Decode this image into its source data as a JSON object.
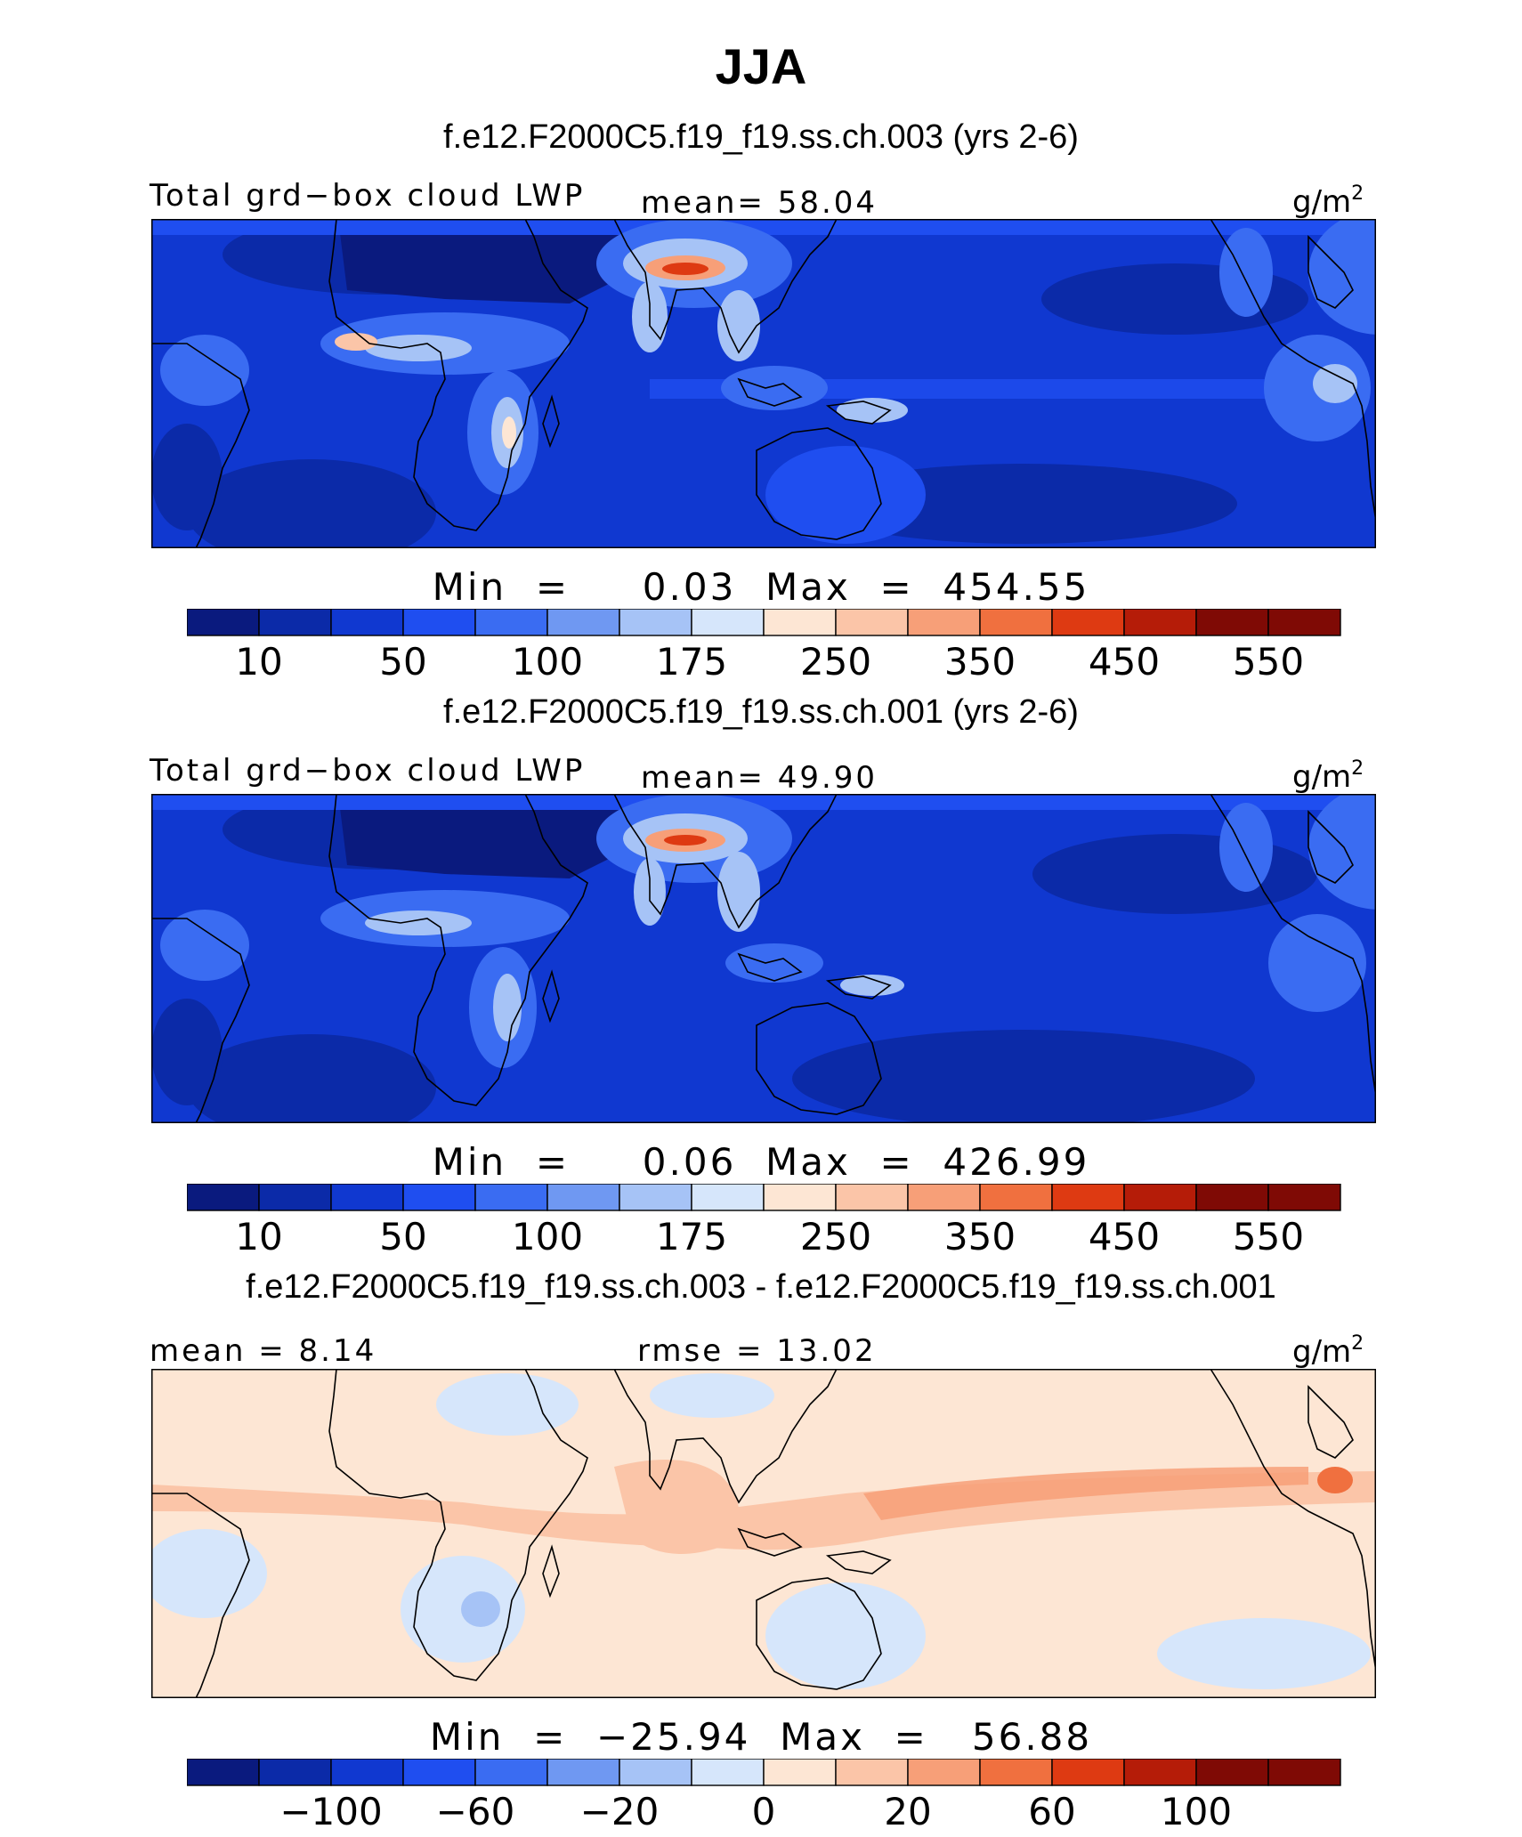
{
  "figure": {
    "title": "JJA",
    "units_base": "g/m",
    "units_exp": "2"
  },
  "palette": {
    "levels14": [
      "#0a1a7e",
      "#0b2aa8",
      "#1038d0",
      "#1f4ef0",
      "#3a6cf2",
      "#6f98f2",
      "#a6c3f6",
      "#d6e6fb",
      "#fde6d4",
      "#fbc5a8",
      "#f79f78",
      "#f0703f",
      "#de3a12",
      "#b51c08",
      "#7f0a05"
    ],
    "ocean_blue": "#1038d0",
    "coast": "#000000"
  },
  "panels": [
    {
      "title": "f.e12.F2000C5.f19_f19.ss.ch.003 (yrs 2-6)",
      "field_label": "Total grd−box cloud LWP",
      "stat_label": "mean=  58.04",
      "minmax": "Min  =     0.03  Max  =  454.55",
      "colorbar_ticks": [
        "10",
        "50",
        "100",
        "175",
        "250",
        "350",
        "450",
        "550"
      ]
    },
    {
      "title": "f.e12.F2000C5.f19_f19.ss.ch.001 (yrs 2-6)",
      "field_label": "Total grd−box cloud LWP",
      "stat_label": "mean=  49.90",
      "minmax": "Min  =     0.06  Max  =  426.99",
      "colorbar_ticks": [
        "10",
        "50",
        "100",
        "175",
        "250",
        "350",
        "450",
        "550"
      ]
    },
    {
      "title": "f.e12.F2000C5.f19_f19.ss.ch.003 - f.e12.F2000C5.f19_f19.ss.ch.001",
      "field_label": "mean =   8.14",
      "stat_label": "rmse  =  13.02",
      "minmax": "Min  =  −25.94  Max  =   56.88",
      "colorbar_ticks": [
        "−100",
        "−60",
        "−20",
        "0",
        "20",
        "60",
        "100"
      ]
    }
  ],
  "chart_data": [
    {
      "type": "heatmap",
      "title": "f.e12.F2000C5.f19_f19.ss.ch.003 (yrs 2-6)",
      "variable": "Total grd-box cloud LWP",
      "units": "g/m2",
      "season": "JJA",
      "mean": 58.04,
      "min": 0.03,
      "max": 454.55,
      "contour_levels": [
        10,
        25,
        50,
        75,
        100,
        125,
        150,
        175,
        200,
        250,
        300,
        350,
        400,
        450,
        500,
        550
      ],
      "colorbar_labels": [
        10,
        50,
        100,
        175,
        250,
        350,
        450,
        550
      ]
    },
    {
      "type": "heatmap",
      "title": "f.e12.F2000C5.f19_f19.ss.ch.001 (yrs 2-6)",
      "variable": "Total grd-box cloud LWP",
      "units": "g/m2",
      "season": "JJA",
      "mean": 49.9,
      "min": 0.06,
      "max": 426.99,
      "contour_levels": [
        10,
        25,
        50,
        75,
        100,
        125,
        150,
        175,
        200,
        250,
        300,
        350,
        400,
        450,
        500,
        550
      ],
      "colorbar_labels": [
        10,
        50,
        100,
        175,
        250,
        350,
        450,
        550
      ]
    },
    {
      "type": "heatmap",
      "title": "f.e12.F2000C5.f19_f19.ss.ch.003 - f.e12.F2000C5.f19_f19.ss.ch.001",
      "variable": "Total grd-box cloud LWP difference",
      "units": "g/m2",
      "season": "JJA",
      "mean": 8.14,
      "rmse": 13.02,
      "min": -25.94,
      "max": 56.88,
      "colorbar_labels": [
        -100,
        -60,
        -20,
        0,
        20,
        60,
        100
      ]
    }
  ]
}
